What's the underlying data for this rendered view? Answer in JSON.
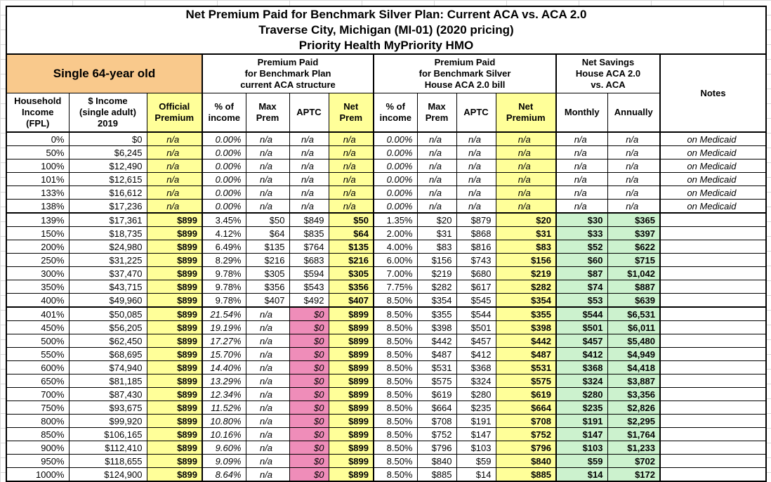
{
  "colors": {
    "highlight_yellow": "#FFFF99",
    "header_orange": "#F9C98C",
    "zero_aptc_pink": "#EF8DB9",
    "savings_green": "#CCF2CE"
  },
  "title": {
    "line1": "Net Premium Paid for Benchmark Silver Plan: Current ACA vs. ACA 2.0",
    "line2": "Traverse City, Michigan (MI-01) (2020 pricing)",
    "line3": "Priority Health MyPriority HMO"
  },
  "bands": {
    "person": "Single 64-year old",
    "current_aca": "Premium Paid\nfor Benchmark Plan\ncurrent ACA structure",
    "house_aca": "Premium Paid\nfor Benchmark Silver\nHouse ACA 2.0 bill",
    "savings": "Net Savings\nHouse ACA 2.0\nvs. ACA",
    "notes": "Notes"
  },
  "columns": [
    {
      "label": "Household\nIncome\n(FPL)"
    },
    {
      "label": "$ Income\n(single adult)\n2019"
    },
    {
      "label": "Official\nPremium"
    },
    {
      "label": "% of\nincome"
    },
    {
      "label": "Max\nPrem"
    },
    {
      "label": "APTC"
    },
    {
      "label": "Net\nPrem"
    },
    {
      "label": "% of\nincome"
    },
    {
      "label": "Max\nPrem"
    },
    {
      "label": "APTC"
    },
    {
      "label": "Net\nPremium"
    },
    {
      "label": "Monthly"
    },
    {
      "label": "Annually"
    }
  ],
  "rows": [
    {
      "type": "medicaid",
      "fpl": "0%",
      "income": "$0",
      "official": "n/a",
      "aca_pct": "0.00%",
      "aca_max": "n/a",
      "aca_aptc": "n/a",
      "aca_net": "n/a",
      "h_pct": "0.00%",
      "h_max": "n/a",
      "h_aptc": "n/a",
      "h_net": "n/a",
      "monthly": "n/a",
      "annually": "n/a",
      "notes": "on Medicaid"
    },
    {
      "type": "medicaid",
      "fpl": "50%",
      "income": "$6,245",
      "official": "n/a",
      "aca_pct": "0.00%",
      "aca_max": "n/a",
      "aca_aptc": "n/a",
      "aca_net": "n/a",
      "h_pct": "0.00%",
      "h_max": "n/a",
      "h_aptc": "n/a",
      "h_net": "n/a",
      "monthly": "n/a",
      "annually": "n/a",
      "notes": "on Medicaid"
    },
    {
      "type": "medicaid",
      "fpl": "100%",
      "income": "$12,490",
      "official": "n/a",
      "aca_pct": "0.00%",
      "aca_max": "n/a",
      "aca_aptc": "n/a",
      "aca_net": "n/a",
      "h_pct": "0.00%",
      "h_max": "n/a",
      "h_aptc": "n/a",
      "h_net": "n/a",
      "monthly": "n/a",
      "annually": "n/a",
      "notes": "on Medicaid"
    },
    {
      "type": "medicaid",
      "fpl": "101%",
      "income": "$12,615",
      "official": "n/a",
      "aca_pct": "0.00%",
      "aca_max": "n/a",
      "aca_aptc": "n/a",
      "aca_net": "n/a",
      "h_pct": "0.00%",
      "h_max": "n/a",
      "h_aptc": "n/a",
      "h_net": "n/a",
      "monthly": "n/a",
      "annually": "n/a",
      "notes": "on Medicaid"
    },
    {
      "type": "medicaid",
      "fpl": "133%",
      "income": "$16,612",
      "official": "n/a",
      "aca_pct": "0.00%",
      "aca_max": "n/a",
      "aca_aptc": "n/a",
      "aca_net": "n/a",
      "h_pct": "0.00%",
      "h_max": "n/a",
      "h_aptc": "n/a",
      "h_net": "n/a",
      "monthly": "n/a",
      "annually": "n/a",
      "notes": "on Medicaid"
    },
    {
      "type": "medicaid",
      "fpl": "138%",
      "income": "$17,236",
      "official": "n/a",
      "aca_pct": "0.00%",
      "aca_max": "n/a",
      "aca_aptc": "n/a",
      "aca_net": "n/a",
      "h_pct": "0.00%",
      "h_max": "n/a",
      "h_aptc": "n/a",
      "h_net": "n/a",
      "monthly": "n/a",
      "annually": "n/a",
      "notes": "on Medicaid"
    },
    {
      "type": "subsidy",
      "fpl": "139%",
      "income": "$17,361",
      "official": "$899",
      "aca_pct": "3.45%",
      "aca_max": "$50",
      "aca_aptc": "$849",
      "aca_net": "$50",
      "h_pct": "1.35%",
      "h_max": "$20",
      "h_aptc": "$879",
      "h_net": "$20",
      "monthly": "$30",
      "annually": "$365",
      "notes": ""
    },
    {
      "type": "subsidy",
      "fpl": "150%",
      "income": "$18,735",
      "official": "$899",
      "aca_pct": "4.12%",
      "aca_max": "$64",
      "aca_aptc": "$835",
      "aca_net": "$64",
      "h_pct": "2.00%",
      "h_max": "$31",
      "h_aptc": "$868",
      "h_net": "$31",
      "monthly": "$33",
      "annually": "$397",
      "notes": ""
    },
    {
      "type": "subsidy",
      "fpl": "200%",
      "income": "$24,980",
      "official": "$899",
      "aca_pct": "6.49%",
      "aca_max": "$135",
      "aca_aptc": "$764",
      "aca_net": "$135",
      "h_pct": "4.00%",
      "h_max": "$83",
      "h_aptc": "$816",
      "h_net": "$83",
      "monthly": "$52",
      "annually": "$622",
      "notes": ""
    },
    {
      "type": "subsidy",
      "fpl": "250%",
      "income": "$31,225",
      "official": "$899",
      "aca_pct": "8.29%",
      "aca_max": "$216",
      "aca_aptc": "$683",
      "aca_net": "$216",
      "h_pct": "6.00%",
      "h_max": "$156",
      "h_aptc": "$743",
      "h_net": "$156",
      "monthly": "$60",
      "annually": "$715",
      "notes": ""
    },
    {
      "type": "subsidy",
      "fpl": "300%",
      "income": "$37,470",
      "official": "$899",
      "aca_pct": "9.78%",
      "aca_max": "$305",
      "aca_aptc": "$594",
      "aca_net": "$305",
      "h_pct": "7.00%",
      "h_max": "$219",
      "h_aptc": "$680",
      "h_net": "$219",
      "monthly": "$87",
      "annually": "$1,042",
      "notes": ""
    },
    {
      "type": "subsidy",
      "fpl": "350%",
      "income": "$43,715",
      "official": "$899",
      "aca_pct": "9.78%",
      "aca_max": "$356",
      "aca_aptc": "$543",
      "aca_net": "$356",
      "h_pct": "7.75%",
      "h_max": "$282",
      "h_aptc": "$617",
      "h_net": "$282",
      "monthly": "$74",
      "annually": "$887",
      "notes": ""
    },
    {
      "type": "subsidy",
      "fpl": "400%",
      "income": "$49,960",
      "official": "$899",
      "aca_pct": "9.78%",
      "aca_max": "$407",
      "aca_aptc": "$492",
      "aca_net": "$407",
      "h_pct": "8.50%",
      "h_max": "$354",
      "h_aptc": "$545",
      "h_net": "$354",
      "monthly": "$53",
      "annually": "$639",
      "notes": ""
    },
    {
      "type": "full",
      "fpl": "401%",
      "income": "$50,085",
      "official": "$899",
      "aca_pct": "21.54%",
      "aca_max": "n/a",
      "aca_aptc": "$0",
      "aca_net": "$899",
      "h_pct": "8.50%",
      "h_max": "$355",
      "h_aptc": "$544",
      "h_net": "$355",
      "monthly": "$544",
      "annually": "$6,531",
      "notes": ""
    },
    {
      "type": "full",
      "fpl": "450%",
      "income": "$56,205",
      "official": "$899",
      "aca_pct": "19.19%",
      "aca_max": "n/a",
      "aca_aptc": "$0",
      "aca_net": "$899",
      "h_pct": "8.50%",
      "h_max": "$398",
      "h_aptc": "$501",
      "h_net": "$398",
      "monthly": "$501",
      "annually": "$6,011",
      "notes": ""
    },
    {
      "type": "full",
      "fpl": "500%",
      "income": "$62,450",
      "official": "$899",
      "aca_pct": "17.27%",
      "aca_max": "n/a",
      "aca_aptc": "$0",
      "aca_net": "$899",
      "h_pct": "8.50%",
      "h_max": "$442",
      "h_aptc": "$457",
      "h_net": "$442",
      "monthly": "$457",
      "annually": "$5,480",
      "notes": ""
    },
    {
      "type": "full",
      "fpl": "550%",
      "income": "$68,695",
      "official": "$899",
      "aca_pct": "15.70%",
      "aca_max": "n/a",
      "aca_aptc": "$0",
      "aca_net": "$899",
      "h_pct": "8.50%",
      "h_max": "$487",
      "h_aptc": "$412",
      "h_net": "$487",
      "monthly": "$412",
      "annually": "$4,949",
      "notes": ""
    },
    {
      "type": "full",
      "fpl": "600%",
      "income": "$74,940",
      "official": "$899",
      "aca_pct": "14.40%",
      "aca_max": "n/a",
      "aca_aptc": "$0",
      "aca_net": "$899",
      "h_pct": "8.50%",
      "h_max": "$531",
      "h_aptc": "$368",
      "h_net": "$531",
      "monthly": "$368",
      "annually": "$4,418",
      "notes": ""
    },
    {
      "type": "full",
      "fpl": "650%",
      "income": "$81,185",
      "official": "$899",
      "aca_pct": "13.29%",
      "aca_max": "n/a",
      "aca_aptc": "$0",
      "aca_net": "$899",
      "h_pct": "8.50%",
      "h_max": "$575",
      "h_aptc": "$324",
      "h_net": "$575",
      "monthly": "$324",
      "annually": "$3,887",
      "notes": ""
    },
    {
      "type": "full",
      "fpl": "700%",
      "income": "$87,430",
      "official": "$899",
      "aca_pct": "12.34%",
      "aca_max": "n/a",
      "aca_aptc": "$0",
      "aca_net": "$899",
      "h_pct": "8.50%",
      "h_max": "$619",
      "h_aptc": "$280",
      "h_net": "$619",
      "monthly": "$280",
      "annually": "$3,356",
      "notes": ""
    },
    {
      "type": "full",
      "fpl": "750%",
      "income": "$93,675",
      "official": "$899",
      "aca_pct": "11.52%",
      "aca_max": "n/a",
      "aca_aptc": "$0",
      "aca_net": "$899",
      "h_pct": "8.50%",
      "h_max": "$664",
      "h_aptc": "$235",
      "h_net": "$664",
      "monthly": "$235",
      "annually": "$2,826",
      "notes": ""
    },
    {
      "type": "full",
      "fpl": "800%",
      "income": "$99,920",
      "official": "$899",
      "aca_pct": "10.80%",
      "aca_max": "n/a",
      "aca_aptc": "$0",
      "aca_net": "$899",
      "h_pct": "8.50%",
      "h_max": "$708",
      "h_aptc": "$191",
      "h_net": "$708",
      "monthly": "$191",
      "annually": "$2,295",
      "notes": ""
    },
    {
      "type": "full",
      "fpl": "850%",
      "income": "$106,165",
      "official": "$899",
      "aca_pct": "10.16%",
      "aca_max": "n/a",
      "aca_aptc": "$0",
      "aca_net": "$899",
      "h_pct": "8.50%",
      "h_max": "$752",
      "h_aptc": "$147",
      "h_net": "$752",
      "monthly": "$147",
      "annually": "$1,764",
      "notes": ""
    },
    {
      "type": "full",
      "fpl": "900%",
      "income": "$112,410",
      "official": "$899",
      "aca_pct": "9.60%",
      "aca_max": "n/a",
      "aca_aptc": "$0",
      "aca_net": "$899",
      "h_pct": "8.50%",
      "h_max": "$796",
      "h_aptc": "$103",
      "h_net": "$796",
      "monthly": "$103",
      "annually": "$1,233",
      "notes": ""
    },
    {
      "type": "full",
      "fpl": "950%",
      "income": "$118,655",
      "official": "$899",
      "aca_pct": "9.09%",
      "aca_max": "n/a",
      "aca_aptc": "$0",
      "aca_net": "$899",
      "h_pct": "8.50%",
      "h_max": "$840",
      "h_aptc": "$59",
      "h_net": "$840",
      "monthly": "$59",
      "annually": "$702",
      "notes": ""
    },
    {
      "type": "full",
      "fpl": "1000%",
      "income": "$124,900",
      "official": "$899",
      "aca_pct": "8.64%",
      "aca_max": "n/a",
      "aca_aptc": "$0",
      "aca_net": "$899",
      "h_pct": "8.50%",
      "h_max": "$885",
      "h_aptc": "$14",
      "h_net": "$885",
      "monthly": "$14",
      "annually": "$172",
      "notes": ""
    }
  ]
}
